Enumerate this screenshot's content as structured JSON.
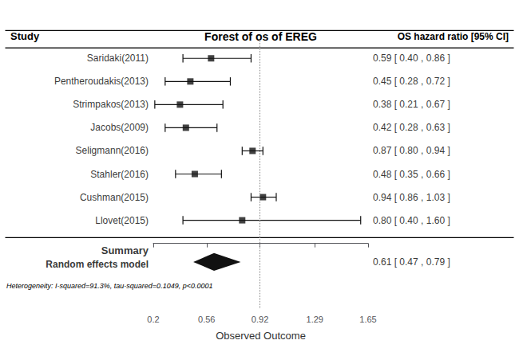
{
  "chart_data": {
    "type": "forest",
    "title": "Forest of os of EREG",
    "column_headers": [
      "Study",
      "OS hazard ratio [95% CI]"
    ],
    "xlabel": "Observed Outcome",
    "categories": [
      "Saridaki(2011)",
      "Pentheroudakis(2013)",
      "Strimpakos(2013)",
      "Jacobs(2009)",
      "Seligmann(2016)",
      "Stahler(2016)",
      "Cushman(2015)",
      "Llovet(2015)"
    ],
    "values": [
      0.59,
      0.45,
      0.38,
      0.42,
      0.87,
      0.48,
      0.94,
      0.8
    ],
    "lo": [
      0.4,
      0.28,
      0.21,
      0.28,
      0.8,
      0.35,
      0.86,
      0.4
    ],
    "hi": [
      0.86,
      0.72,
      0.67,
      0.63,
      0.94,
      0.66,
      1.03,
      1.6
    ],
    "value_labels": [
      "0.59 [ 0.40 , 0.86 ]",
      "0.45 [ 0.28 , 0.72 ]",
      "0.38 [ 0.21 , 0.67 ]",
      "0.42 [ 0.28 , 0.63 ]",
      "0.87 [ 0.80 , 0.94 ]",
      "0.48 [ 0.35 , 0.66 ]",
      "0.94 [ 0.86 , 1.03 ]",
      "0.80 [ 0.40 , 1.60 ]"
    ],
    "summary": {
      "labels": [
        "Summary",
        "Random effects model"
      ],
      "value": 0.61,
      "lo": 0.47,
      "hi": 0.79,
      "value_label": "0.61 [ 0.47 , 0.79 ]"
    },
    "annotations": [
      "Heterogeneity: I-squared=91.3%, tau-squared=0.1049, p<0.0001"
    ],
    "xlim": [
      0.2,
      1.65
    ],
    "xticks": [
      0.2,
      0.56,
      0.92,
      1.29,
      1.65
    ],
    "reference_line": 0.92,
    "color": "#111111",
    "grid": false
  }
}
